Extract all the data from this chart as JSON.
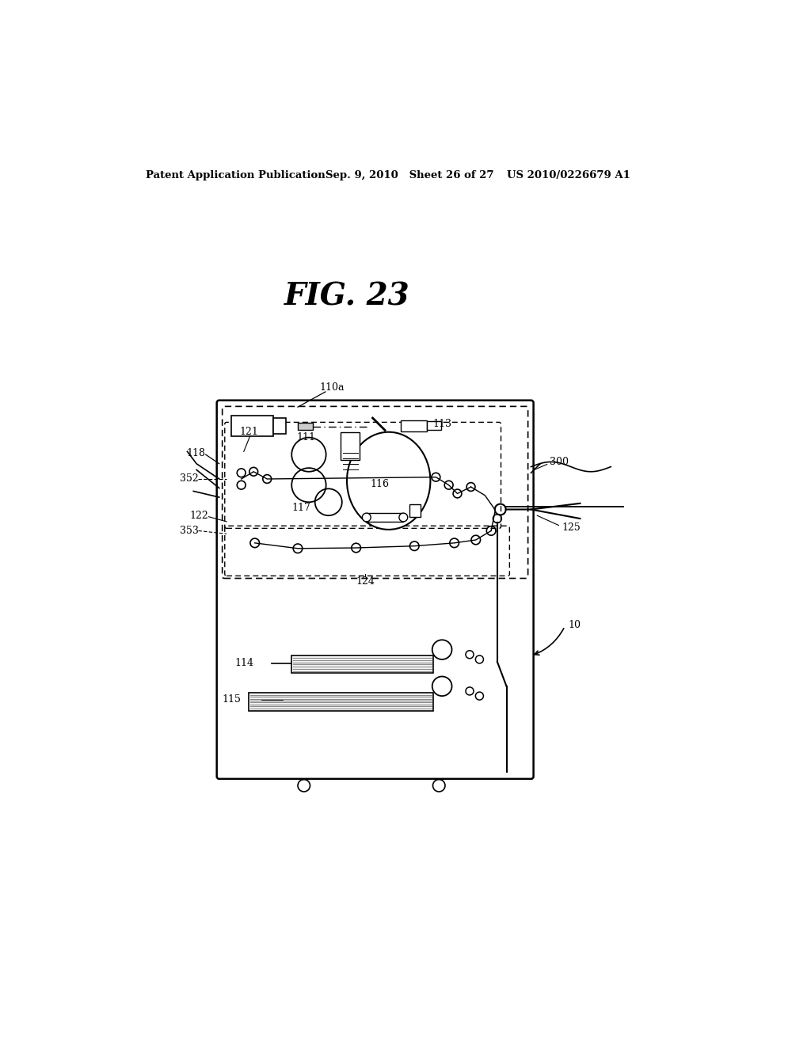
{
  "bg_color": "#ffffff",
  "header_left": "Patent Application Publication",
  "header_mid": "Sep. 9, 2010   Sheet 26 of 27",
  "header_right": "US 2010/0226679 A1",
  "fig_title": "FIG. 23",
  "label_10": "10",
  "label_110a": "110a",
  "label_111": "111",
  "label_113": "113",
  "label_114": "114",
  "label_115": "115",
  "label_116": "116",
  "label_117": "117",
  "label_118": "118",
  "label_121": "121",
  "label_122": "122",
  "label_124": "124",
  "label_125": "125",
  "label_300": "300",
  "label_352": "352",
  "label_353": "353"
}
